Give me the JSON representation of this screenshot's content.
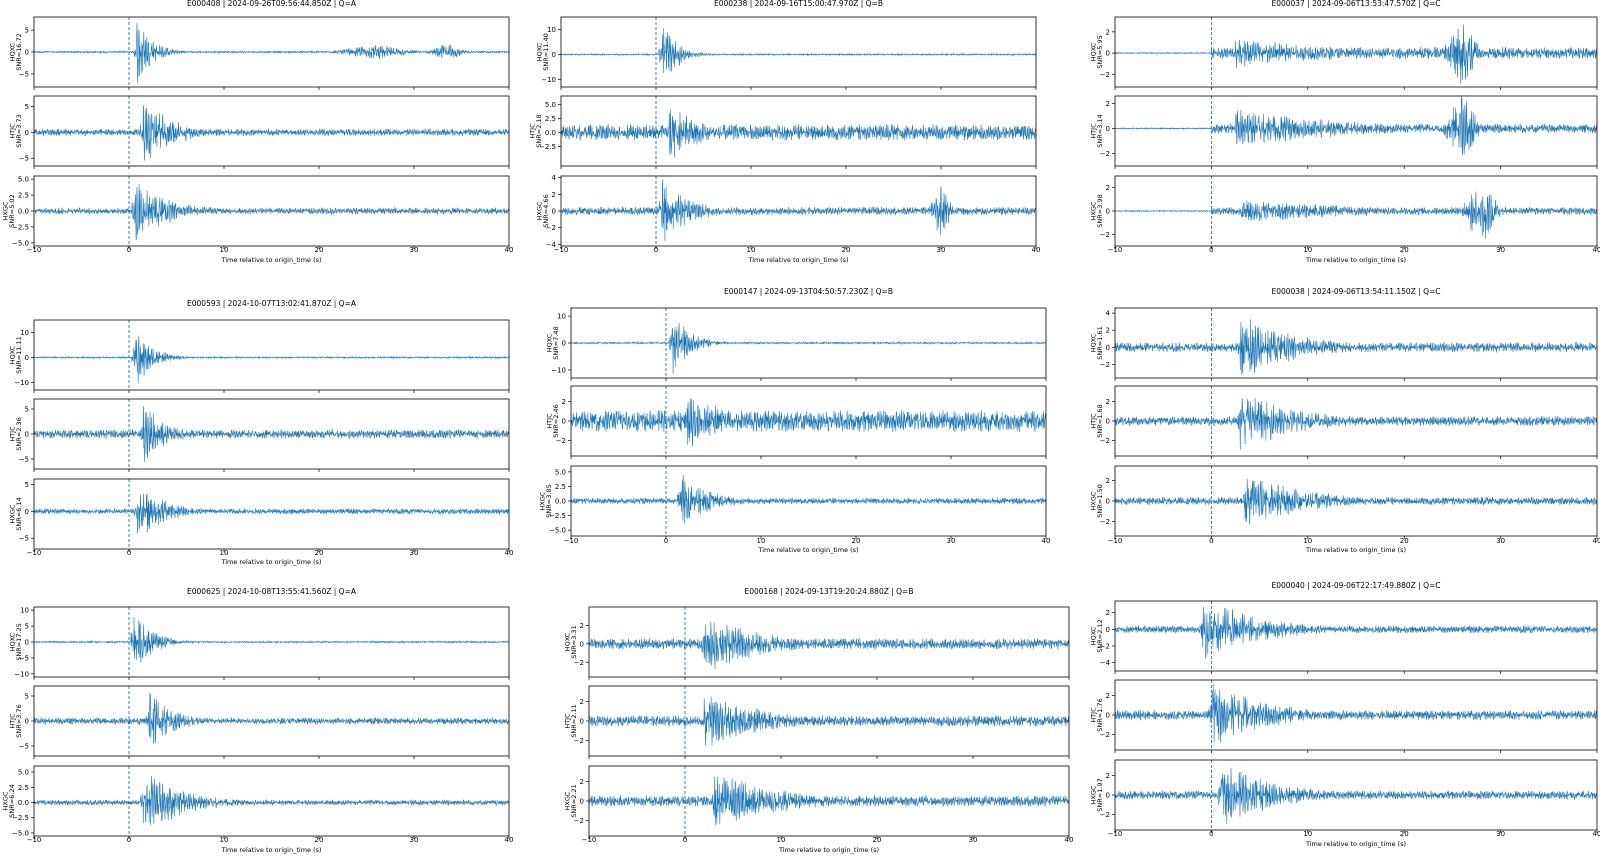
{
  "figure": {
    "xlabel": "Time relative to origin_time (s)",
    "accent": "#1f77b4"
  },
  "chart_data": [
    {
      "type": "line",
      "title": "E000408 | 2024-09-26T09:56:44.850Z | Q=A",
      "xlabel": "Time relative to origin_time (s)",
      "xlim": [
        -10,
        40
      ],
      "xticks": [
        -10,
        0,
        10,
        20,
        30,
        40
      ],
      "grid": false,
      "onset_marker_x": 0,
      "panels": [
        {
          "channel": "HQXC",
          "snr": "SNR=16.72",
          "ylim": [
            -8,
            8
          ],
          "yticks": [
            -5,
            0,
            5
          ],
          "ytick_labels": [
            "−5",
            "0",
            "5"
          ],
          "peak_x": 0.8,
          "peak_amp": 7.2,
          "noise_amp": 0.2,
          "coda_s": 1.6,
          "bursts": [
            {
              "x": 26,
              "w": 7,
              "amp": 1.4
            },
            {
              "x": 33.5,
              "w": 3,
              "amp": 1.8
            }
          ]
        },
        {
          "channel": "HTJC",
          "snr": "SNR=3.73",
          "ylim": [
            -6.5,
            7
          ],
          "yticks": [
            -5,
            0,
            5
          ],
          "ytick_labels": [
            "−5",
            "0",
            "5"
          ],
          "peak_x": 1.5,
          "peak_amp": 6.5,
          "noise_amp": 0.6,
          "coda_s": 3.0,
          "bursts": []
        },
        {
          "channel": "HXGC",
          "snr": "SNR=5.02",
          "ylim": [
            -5.5,
            5.5
          ],
          "yticks": [
            -5.0,
            -2.5,
            0.0,
            2.5,
            5.0
          ],
          "ytick_labels": [
            "−5.0",
            "−2.5",
            "0.0",
            "2.5",
            "5.0"
          ],
          "peak_x": 0.6,
          "peak_amp": 4.8,
          "noise_amp": 0.45,
          "coda_s": 3.5,
          "bursts": []
        }
      ]
    },
    {
      "type": "line",
      "title": "E000238 | 2024-09-16T15:00:47.970Z | Q=B",
      "xlabel": "Time relative to origin_time (s)",
      "xlim": [
        -10,
        40
      ],
      "xticks": [
        -10,
        0,
        10,
        20,
        30,
        40
      ],
      "grid": false,
      "onset_marker_x": 0,
      "panels": [
        {
          "channel": "HQXC",
          "snr": "SNR=11.40",
          "ylim": [
            -13,
            15
          ],
          "yticks": [
            -10,
            0,
            10
          ],
          "ytick_labels": [
            "−10",
            "0",
            "10"
          ],
          "peak_x": 0.6,
          "peak_amp": 13,
          "noise_amp": 0.3,
          "coda_s": 1.5,
          "bursts": []
        },
        {
          "channel": "HTJC",
          "snr": "SNR=2.18",
          "ylim": [
            -6,
            6.5
          ],
          "yticks": [
            -2.5,
            0.0,
            2.5,
            5.0
          ],
          "ytick_labels": [
            "−2.5",
            "0.0",
            "2.5",
            "5.0"
          ],
          "peak_x": 1.4,
          "peak_amp": 5.2,
          "noise_amp": 1.3,
          "coda_s": 3.0,
          "bursts": []
        },
        {
          "channel": "HXGC",
          "snr": "SNR=4.66",
          "ylim": [
            -4.2,
            4.2
          ],
          "yticks": [
            -4,
            -2,
            0,
            2,
            4
          ],
          "ytick_labels": [
            "−4",
            "−2",
            "0",
            "2",
            "4"
          ],
          "peak_x": 0.6,
          "peak_amp": 3.6,
          "noise_amp": 0.45,
          "coda_s": 3.0,
          "bursts": [
            {
              "x": 30,
              "w": 2,
              "amp": 2.6
            }
          ]
        }
      ]
    },
    {
      "type": "line",
      "title": "E000037 | 2024-09-06T13:53:47.570Z | Q=C",
      "xlabel": "Time relative to origin_time (s)",
      "xlim": [
        -10,
        40
      ],
      "xticks": [
        -10,
        0,
        10,
        20,
        30,
        40
      ],
      "grid": false,
      "onset_marker_x": 0,
      "panels": [
        {
          "channel": "HQXC",
          "snr": "SNR=5.95",
          "ylim": [
            -3.2,
            3.4
          ],
          "yticks": [
            -2,
            0,
            2
          ],
          "ytick_labels": [
            "−2",
            "0",
            "2"
          ],
          "pre_amp": 0.05,
          "peak_x": 2.5,
          "peak_amp": 1.3,
          "noise_amp": 0.5,
          "coda_s": 12,
          "bursts": [
            {
              "x": 26,
              "w": 3,
              "amp": 2.8
            }
          ]
        },
        {
          "channel": "HTJC",
          "snr": "SNR=3.14",
          "ylim": [
            -3,
            2.6
          ],
          "yticks": [
            -2,
            0,
            2
          ],
          "ytick_labels": [
            "−2",
            "0",
            "2"
          ],
          "pre_amp": 0.05,
          "peak_x": 2.5,
          "peak_amp": 1.4,
          "noise_amp": 0.35,
          "coda_s": 12,
          "bursts": [
            {
              "x": 26,
              "w": 3,
              "amp": 2.4
            }
          ]
        },
        {
          "channel": "HXGC",
          "snr": "SNR=3.98",
          "ylim": [
            -3,
            3
          ],
          "yticks": [
            -2,
            0,
            2
          ],
          "ytick_labels": [
            "−2",
            "0",
            "2"
          ],
          "pre_amp": 0.05,
          "peak_x": 3,
          "peak_amp": 1.0,
          "noise_amp": 0.3,
          "coda_s": 12,
          "bursts": [
            {
              "x": 28,
              "w": 3,
              "amp": 2.4
            }
          ]
        }
      ]
    },
    {
      "type": "line",
      "title": "E000593 | 2024-10-07T13:02:41.870Z | Q=A",
      "xlabel": "Time relative to origin_time (s)",
      "xlim": [
        -10,
        40
      ],
      "xticks": [
        -10,
        0,
        10,
        20,
        30,
        40
      ],
      "grid": false,
      "onset_marker_x": 0,
      "panels": [
        {
          "channel": "HQXC",
          "snr": "SNR=11.11",
          "ylim": [
            -13,
            15
          ],
          "yticks": [
            -10,
            0,
            10
          ],
          "ytick_labels": [
            "−10",
            "0",
            "10"
          ],
          "peak_x": 0.6,
          "peak_amp": 13,
          "noise_amp": 0.3,
          "coda_s": 1.6,
          "bursts": []
        },
        {
          "channel": "HTJC",
          "snr": "SNR=2.36",
          "ylim": [
            -7,
            7
          ],
          "yticks": [
            -5,
            0,
            5
          ],
          "ytick_labels": [
            "−5",
            "0",
            "5"
          ],
          "peak_x": 1.5,
          "peak_amp": 5.5,
          "noise_amp": 0.8,
          "coda_s": 2.5,
          "bursts": []
        },
        {
          "channel": "HXGC",
          "snr": "SNR=6.14",
          "ylim": [
            -7,
            6
          ],
          "yticks": [
            -5,
            0,
            5
          ],
          "ytick_labels": [
            "−5",
            "0",
            "5"
          ],
          "peak_x": 0.8,
          "peak_amp": 5.0,
          "noise_amp": 0.45,
          "coda_s": 3.0,
          "bursts": []
        }
      ]
    },
    {
      "type": "line",
      "title": "E000147 | 2024-09-13T04:50:57.230Z | Q=B",
      "xlabel": "Time relative to origin_time (s)",
      "xlim": [
        -10,
        40
      ],
      "xticks": [
        -10,
        0,
        10,
        20,
        30,
        40
      ],
      "grid": false,
      "onset_marker_x": 0,
      "panels": [
        {
          "channel": "HQXC",
          "snr": "SNR=7.48",
          "ylim": [
            -13,
            13
          ],
          "yticks": [
            -10,
            0,
            10
          ],
          "ytick_labels": [
            "−10",
            "0",
            "10"
          ],
          "peak_x": 0.6,
          "peak_amp": 11.5,
          "noise_amp": 0.3,
          "coda_s": 1.8,
          "bursts": []
        },
        {
          "channel": "HTJC",
          "snr": "SNR=2.46",
          "ylim": [
            -3.6,
            3.6
          ],
          "yticks": [
            -2,
            0,
            2
          ],
          "ytick_labels": [
            "−2",
            "0",
            "2"
          ],
          "peak_x": 2.2,
          "peak_amp": 3.0,
          "noise_amp": 1.0,
          "coda_s": 4.0,
          "bursts": []
        },
        {
          "channel": "HXGC",
          "snr": "SNR=3.85",
          "ylim": [
            -6,
            6
          ],
          "yticks": [
            -5.0,
            -2.5,
            0.0,
            2.5,
            5.0
          ],
          "ytick_labels": [
            "−5.0",
            "−2.5",
            "0.0",
            "2.5",
            "5.0"
          ],
          "peak_x": 1.5,
          "peak_amp": 4.5,
          "noise_amp": 0.45,
          "coda_s": 3.0,
          "bursts": []
        }
      ]
    },
    {
      "type": "line",
      "title": "E000038 | 2024-09-06T13:54:11.150Z | Q=C",
      "xlabel": "Time relative to origin_time (s)",
      "xlim": [
        -10,
        40
      ],
      "xticks": [
        -10,
        0,
        10,
        20,
        30,
        40
      ],
      "grid": false,
      "onset_marker_x": 0,
      "panels": [
        {
          "channel": "HQXC",
          "snr": "SNR=1.61",
          "ylim": [
            -3.6,
            4.6
          ],
          "yticks": [
            -2,
            0,
            2,
            4
          ],
          "ytick_labels": [
            "−2",
            "0",
            "2",
            "4"
          ],
          "peak_x": 3,
          "peak_amp": 3.5,
          "noise_amp": 0.5,
          "coda_s": 6,
          "bursts": []
        },
        {
          "channel": "HTJC",
          "snr": "SNR=1.68",
          "ylim": [
            -3.6,
            3.6
          ],
          "yticks": [
            -2,
            0,
            2
          ],
          "ytick_labels": [
            "−2",
            "0",
            "2"
          ],
          "peak_x": 3,
          "peak_amp": 2.9,
          "noise_amp": 0.45,
          "coda_s": 6,
          "bursts": []
        },
        {
          "channel": "HXGC",
          "snr": "SNR=1.50",
          "ylim": [
            -3.4,
            3.4
          ],
          "yticks": [
            -2,
            0,
            2
          ],
          "ytick_labels": [
            "−2",
            "0",
            "2"
          ],
          "peak_x": 3.5,
          "peak_amp": 2.6,
          "noise_amp": 0.35,
          "coda_s": 6,
          "bursts": []
        }
      ]
    },
    {
      "type": "line",
      "title": "E000625 | 2024-10-08T13:55:41.560Z | Q=A",
      "xlabel": "Time relative to origin_time (s)",
      "xlim": [
        -10,
        40
      ],
      "xticks": [
        -10,
        0,
        10,
        20,
        30,
        40
      ],
      "grid": false,
      "onset_marker_x": 0,
      "panels": [
        {
          "channel": "HQXC",
          "snr": "SNR=17.25",
          "ylim": [
            -11,
            11
          ],
          "yticks": [
            -10,
            -5,
            0,
            5,
            10
          ],
          "ytick_labels": [
            "−10",
            "−5",
            "0",
            "5",
            "10"
          ],
          "peak_x": 0.5,
          "peak_amp": 10,
          "noise_amp": 0.25,
          "coda_s": 1.8,
          "bursts": []
        },
        {
          "channel": "HTJC",
          "snr": "SNR=3.76",
          "ylim": [
            -7,
            7
          ],
          "yticks": [
            -5,
            0,
            5
          ],
          "ytick_labels": [
            "−5",
            "0",
            "5"
          ],
          "peak_x": 2.0,
          "peak_amp": 6.0,
          "noise_amp": 0.6,
          "coda_s": 2.5,
          "bursts": []
        },
        {
          "channel": "HXGC",
          "snr": "SNR=6.24",
          "ylim": [
            -5.5,
            6
          ],
          "yticks": [
            -5.0,
            -2.5,
            0.0,
            2.5,
            5.0
          ],
          "ytick_labels": [
            "−5.0",
            "−2.5",
            "0.0",
            "2.5",
            "5.0"
          ],
          "peak_x": 1.5,
          "peak_amp": 5.0,
          "noise_amp": 0.4,
          "coda_s": 4.0,
          "bursts": []
        }
      ]
    },
    {
      "type": "line",
      "title": "E000168 | 2024-09-13T19:20:24.880Z | Q=B",
      "xlabel": "Time relative to origin_time (s)",
      "xlim": [
        -10,
        40
      ],
      "xticks": [
        -10,
        0,
        10,
        20,
        30,
        40
      ],
      "grid": false,
      "onset_marker_x": 0,
      "panels": [
        {
          "channel": "HQXC",
          "snr": "SNR=3.31",
          "ylim": [
            -3.6,
            4
          ],
          "yticks": [
            -2,
            0,
            2
          ],
          "ytick_labels": [
            "−2",
            "0",
            "2"
          ],
          "peak_x": 2,
          "peak_amp": 3.0,
          "noise_amp": 0.55,
          "coda_s": 6,
          "bursts": []
        },
        {
          "channel": "HTJC",
          "snr": "SNR=2.11",
          "ylim": [
            -3.6,
            3.6
          ],
          "yticks": [
            -2,
            0,
            2
          ],
          "ytick_labels": [
            "−2",
            "0",
            "2"
          ],
          "peak_x": 2,
          "peak_amp": 2.8,
          "noise_amp": 0.5,
          "coda_s": 6,
          "bursts": []
        },
        {
          "channel": "HXGC",
          "snr": "SNR=2.21",
          "ylim": [
            -3.6,
            3.6
          ],
          "yticks": [
            -2,
            0,
            2
          ],
          "ytick_labels": [
            "−2",
            "0",
            "2"
          ],
          "peak_x": 3,
          "peak_amp": 2.8,
          "noise_amp": 0.5,
          "coda_s": 7,
          "bursts": []
        }
      ]
    },
    {
      "type": "line",
      "title": "E000040 | 2024-09-06T22:17:49.880Z | Q=C",
      "xlabel": "Time relative to origin_time (s)",
      "xlim": [
        -10,
        40
      ],
      "xticks": [
        -10,
        0,
        10,
        20,
        30,
        40
      ],
      "grid": false,
      "onset_marker_x": 0,
      "panels": [
        {
          "channel": "HQXC",
          "snr": "SNR=2.12",
          "ylim": [
            -5,
            3.4
          ],
          "yticks": [
            -4,
            -2,
            0,
            2
          ],
          "ytick_labels": [
            "−4",
            "−2",
            "0",
            "2"
          ],
          "peak_x": -1,
          "peak_amp": 3.6,
          "noise_amp": 0.4,
          "coda_s": 6,
          "bursts": []
        },
        {
          "channel": "HTJC",
          "snr": "SNR=1.76",
          "ylim": [
            -3.6,
            3.6
          ],
          "yticks": [
            -2,
            0,
            2
          ],
          "ytick_labels": [
            "−2",
            "0",
            "2"
          ],
          "peak_x": 0,
          "peak_amp": 3.0,
          "noise_amp": 0.45,
          "coda_s": 6,
          "bursts": []
        },
        {
          "channel": "HXGC",
          "snr": "SNR=1.97",
          "ylim": [
            -3.6,
            3.6
          ],
          "yticks": [
            -2,
            0,
            2
          ],
          "ytick_labels": [
            "−2",
            "0",
            "2"
          ],
          "peak_x": 1,
          "peak_amp": 3.0,
          "noise_amp": 0.4,
          "coda_s": 6,
          "bursts": []
        }
      ]
    }
  ]
}
